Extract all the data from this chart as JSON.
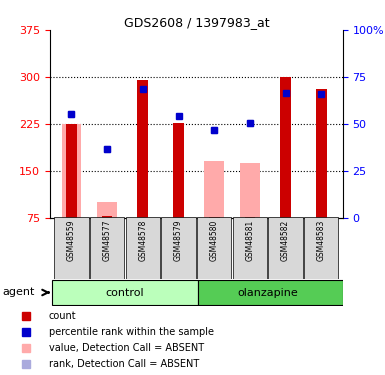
{
  "title": "GDS2608 / 1397983_at",
  "samples": [
    "GSM48559",
    "GSM48577",
    "GSM48578",
    "GSM48579",
    "GSM48580",
    "GSM48581",
    "GSM48582",
    "GSM48583"
  ],
  "red_bars": [
    225,
    78,
    295,
    226,
    76,
    76,
    300,
    280
  ],
  "pink_bars": [
    225,
    100,
    null,
    null,
    165,
    163,
    null,
    null
  ],
  "blue_squares": [
    240,
    185,
    280,
    237,
    215,
    226,
    275,
    272
  ],
  "lightblue_squares": [
    240,
    185,
    null,
    null,
    215,
    226,
    null,
    null
  ],
  "ylim_left": [
    75,
    375
  ],
  "ylim_right": [
    0,
    100
  ],
  "yticks_left": [
    75,
    150,
    225,
    300,
    375
  ],
  "yticks_right": [
    0,
    25,
    50,
    75,
    100
  ],
  "ytick_labels_right": [
    "0",
    "25",
    "50",
    "75",
    "100%"
  ],
  "red_color": "#cc0000",
  "pink_color": "#ffaaaa",
  "blue_color": "#0000cc",
  "lightblue_color": "#aaaadd",
  "legend_items": [
    {
      "label": "count",
      "color": "#cc0000"
    },
    {
      "label": "percentile rank within the sample",
      "color": "#0000cc"
    },
    {
      "label": "value, Detection Call = ABSENT",
      "color": "#ffaaaa"
    },
    {
      "label": "rank, Detection Call = ABSENT",
      "color": "#aaaadd"
    }
  ]
}
